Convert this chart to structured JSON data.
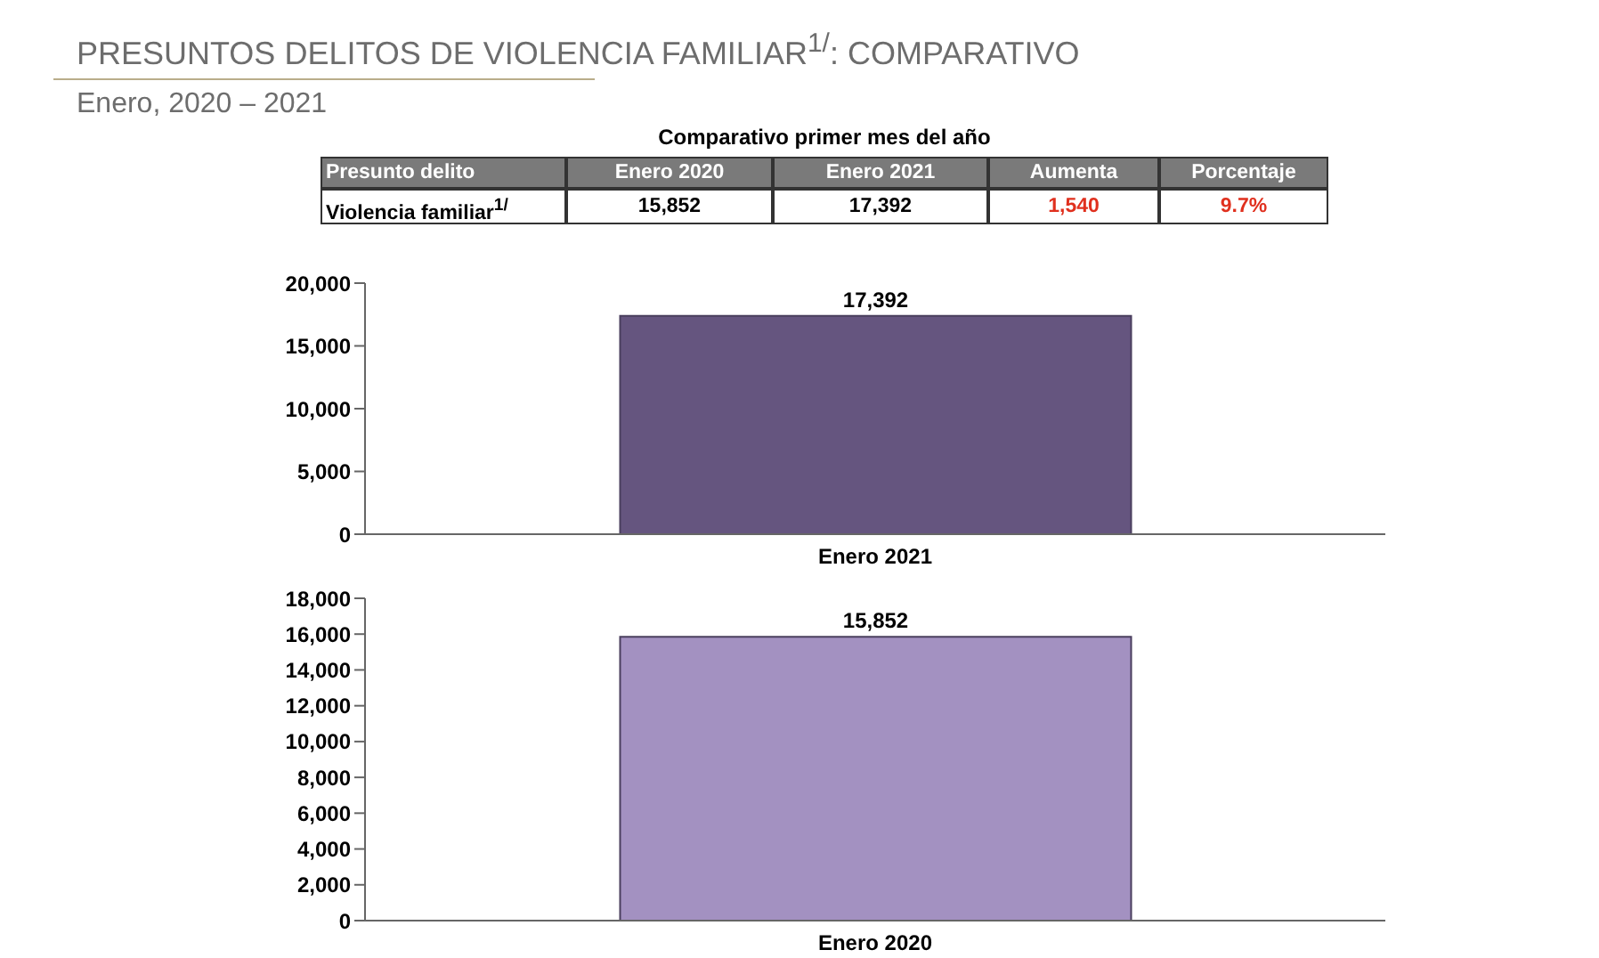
{
  "chart_data": [
    {
      "type": "other",
      "title": "PRESUNTOS DELITOS DE VIOLENCIA FAMILIAR$^{1/}$: COMPARATIVO",
      "subtitle": "Enero, 2020 – 2021",
      "annotations": [
        "Comparativo primer mes del año",
        "Presunto delito",
        "Enero 2020",
        "Enero 2021",
        "Aumenta",
        "Porcentaje",
        "Violencia familiar$^{1/}$",
        "15,852",
        "17,392",
        "1,540",
        "9.7%"
      ]
    },
    {
      "type": "bar",
      "categories": [
        "Enero 2021"
      ],
      "values": [
        17392
      ],
      "value_labels": [
        "17,392"
      ],
      "color": "#65557f",
      "ylim": [
        0,
        20000
      ],
      "yticks": [
        0,
        {
          "value": 5000,
          "label": "5,000"
        },
        {
          "value": 10000,
          "label": "10,000"
        },
        {
          "value": 15000,
          "label": "15,000"
        },
        {
          "value": 20000,
          "label": "20,000"
        }
      ]
    },
    {
      "type": "bar",
      "categories": [
        "Enero 2020"
      ],
      "values": [
        15852
      ],
      "value_labels": [
        "15,852"
      ],
      "color": "#a391c1",
      "ylim": [
        0,
        18000
      ],
      "yticks": [
        0,
        {
          "value": 2000,
          "label": "2,000"
        },
        {
          "value": 4000,
          "label": "4,000"
        },
        {
          "value": 6000,
          "label": "6,000"
        },
        {
          "value": 8000,
          "label": "8,000"
        },
        {
          "value": 10000,
          "label": "10,000"
        },
        {
          "value": 12000,
          "label": "12,000"
        },
        {
          "value": 14000,
          "label": "14,000"
        },
        {
          "value": 16000,
          "label": "16,000"
        },
        {
          "value": 18000,
          "label": "18,000"
        }
      ]
    }
  ]
}
